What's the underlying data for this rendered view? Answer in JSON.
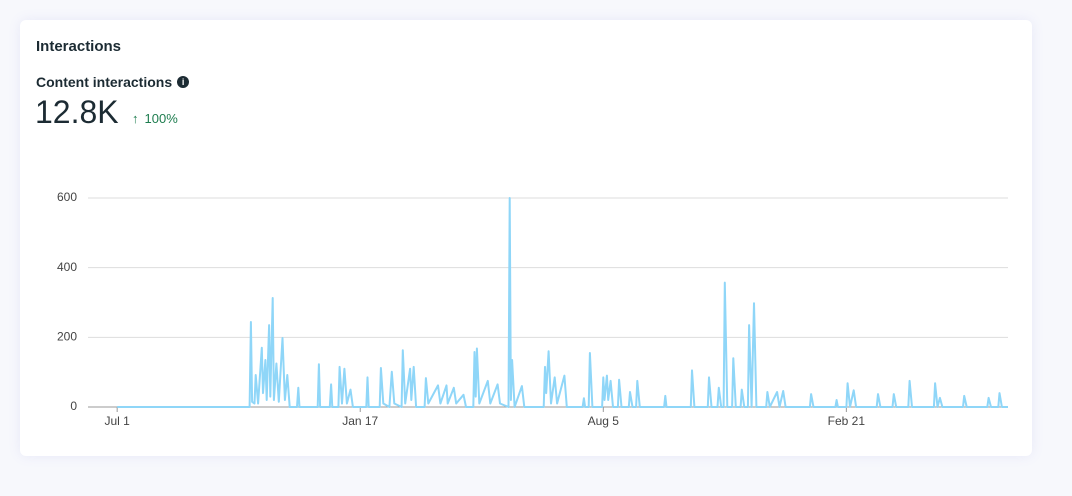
{
  "header": {
    "title": "Interactions",
    "metric": "Content interactions",
    "total": "12.8K",
    "change": "100%"
  },
  "chart_data": {
    "type": "line",
    "color": "#8fd6f8",
    "xlim": [
      -24,
      733
    ],
    "xticks": [
      {
        "value": 0,
        "label": "Jul 1"
      },
      {
        "value": 200,
        "label": "Jan 17"
      },
      {
        "value": 400,
        "label": "Aug 5"
      },
      {
        "value": 600,
        "label": "Feb 21"
      }
    ],
    "ylim": [
      0,
      600
    ],
    "yticks": [
      0,
      200,
      400,
      600
    ],
    "grid": true,
    "x": [
      0,
      109,
      110,
      111,
      113,
      114,
      116,
      119,
      120,
      122,
      123,
      125,
      126,
      128,
      129,
      131,
      133,
      136,
      138,
      140,
      142,
      148,
      149,
      150,
      165,
      166,
      167,
      175,
      176,
      177,
      182,
      183,
      185,
      187,
      189,
      192,
      194,
      205,
      206,
      207,
      216,
      217,
      219,
      224,
      226,
      228,
      234,
      235,
      237,
      241,
      242,
      244,
      246,
      253,
      254,
      256,
      264,
      266,
      271,
      272,
      277,
      279,
      285,
      287,
      293,
      294,
      295,
      296,
      298,
      305,
      307,
      313,
      315,
      322,
      323,
      324,
      325,
      327,
      333,
      335,
      351,
      352,
      353,
      355,
      357,
      360,
      362,
      368,
      370,
      383,
      384,
      385,
      388,
      389,
      391,
      399,
      400,
      401,
      403,
      404,
      406,
      408,
      412,
      413,
      415,
      421,
      422,
      424,
      427,
      428,
      430,
      450,
      451,
      452,
      472,
      473,
      475,
      486,
      487,
      489,
      494,
      495,
      497,
      499,
      500,
      502,
      506,
      507,
      509,
      513,
      514,
      516,
      519,
      520,
      522,
      524,
      526,
      534,
      535,
      537,
      543,
      545,
      548,
      550,
      570,
      571,
      573,
      591,
      592,
      593,
      600,
      601,
      603,
      606,
      608,
      625,
      626,
      628,
      638,
      639,
      641,
      651,
      652,
      654,
      672,
      673,
      675,
      677,
      679,
      696,
      697,
      699,
      716,
      717,
      719,
      725,
      726,
      728,
      733
    ],
    "values": [
      0,
      0,
      244,
      15,
      10,
      92,
      10,
      170,
      40,
      135,
      20,
      235,
      30,
      313,
      20,
      125,
      15,
      198,
      20,
      92,
      0,
      0,
      55,
      0,
      0,
      123,
      0,
      0,
      65,
      0,
      0,
      115,
      10,
      110,
      10,
      50,
      0,
      0,
      85,
      0,
      0,
      112,
      10,
      0,
      101,
      10,
      0,
      163,
      10,
      110,
      20,
      115,
      0,
      0,
      83,
      10,
      62,
      10,
      62,
      10,
      55,
      10,
      35,
      0,
      0,
      158,
      30,
      168,
      10,
      75,
      10,
      65,
      10,
      0,
      600,
      20,
      135,
      0,
      60,
      0,
      0,
      115,
      40,
      160,
      10,
      85,
      10,
      90,
      0,
      0,
      25,
      0,
      0,
      155,
      0,
      0,
      85,
      20,
      90,
      20,
      75,
      0,
      0,
      78,
      0,
      0,
      43,
      0,
      0,
      75,
      0,
      0,
      32,
      0,
      0,
      105,
      0,
      0,
      85,
      0,
      0,
      55,
      0,
      0,
      357,
      0,
      0,
      140,
      0,
      0,
      50,
      0,
      0,
      235,
      0,
      298,
      0,
      0,
      43,
      0,
      43,
      0,
      46,
      0,
      0,
      37,
      0,
      0,
      20,
      0,
      0,
      68,
      0,
      48,
      0,
      0,
      37,
      0,
      0,
      37,
      0,
      0,
      75,
      0,
      0,
      68,
      0,
      26,
      0,
      0,
      32,
      0,
      0,
      26,
      0,
      0,
      40,
      0,
      0
    ]
  }
}
